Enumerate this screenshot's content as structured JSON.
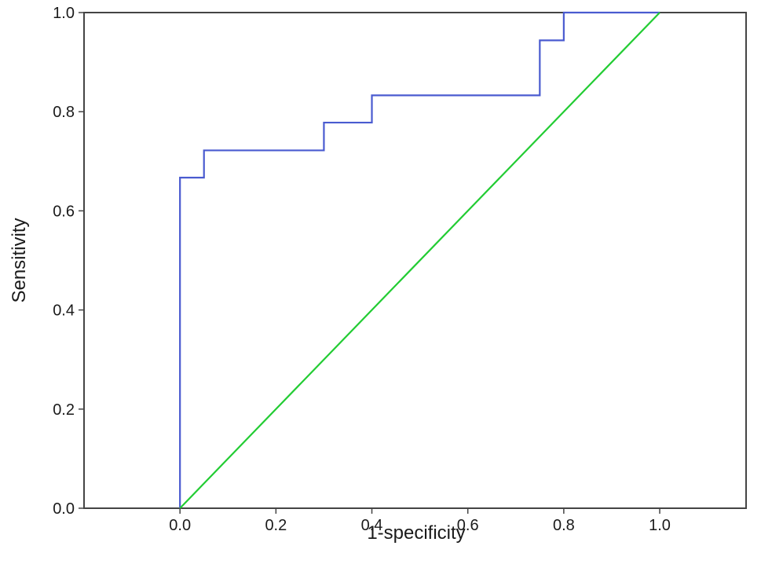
{
  "chart_data": {
    "type": "line",
    "title": "",
    "xlabel": "1-specificity",
    "ylabel": "Sensitivity",
    "xlim": [
      -0.2,
      1.18
    ],
    "ylim": [
      0,
      1
    ],
    "x_ticks": [
      0.0,
      0.2,
      0.4,
      0.6,
      0.8,
      1.0
    ],
    "y_ticks": [
      0.0,
      0.2,
      0.4,
      0.6,
      0.8,
      1.0
    ],
    "x_tick_labels": [
      "0.0",
      "0.2",
      "0.4",
      "0.6",
      "0.8",
      "1.0"
    ],
    "y_tick_labels": [
      "0.0",
      "0.2",
      "0.4",
      "0.6",
      "0.8",
      "1.0"
    ],
    "grid": false,
    "legend": "none",
    "series": [
      {
        "color": "#4a5bd0",
        "step": true,
        "x": [
          0.0,
          0.0,
          0.05,
          0.05,
          0.3,
          0.3,
          0.4,
          0.4,
          0.75,
          0.75,
          0.8,
          0.8,
          1.0
        ],
        "y": [
          0.0,
          0.667,
          0.667,
          0.722,
          0.722,
          0.778,
          0.778,
          0.833,
          0.833,
          0.944,
          0.944,
          1.0,
          1.0
        ]
      },
      {
        "color": "#22cc33",
        "step": false,
        "x": [
          0.0,
          1.0
        ],
        "y": [
          0.0,
          1.0
        ]
      }
    ]
  }
}
